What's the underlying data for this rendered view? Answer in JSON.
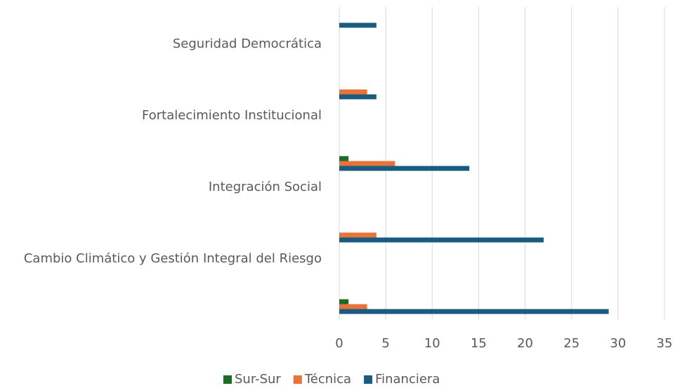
{
  "chart_data": {
    "type": "hbar",
    "categories": [
      null,
      "Cambio Climático y Gestión Integral del Riesgo",
      "Integración Social",
      "Fortalecimiento Institucional",
      "Seguridad Democrática"
    ],
    "series": [
      {
        "name": "Sur-Sur",
        "color": "#1e6b24",
        "values": [
          1,
          0,
          1,
          0,
          0
        ]
      },
      {
        "name": "Técnica",
        "color": "#e8733a",
        "values": [
          3,
          4,
          6,
          3,
          0
        ]
      },
      {
        "name": "Financiera",
        "color": "#1a5c80",
        "values": [
          29,
          22,
          14,
          4,
          4
        ]
      }
    ],
    "xlim": [
      0,
      35
    ],
    "xticks": [
      0,
      5,
      10,
      15,
      20,
      25,
      30,
      35
    ],
    "grid": true,
    "legend": "bottom"
  }
}
